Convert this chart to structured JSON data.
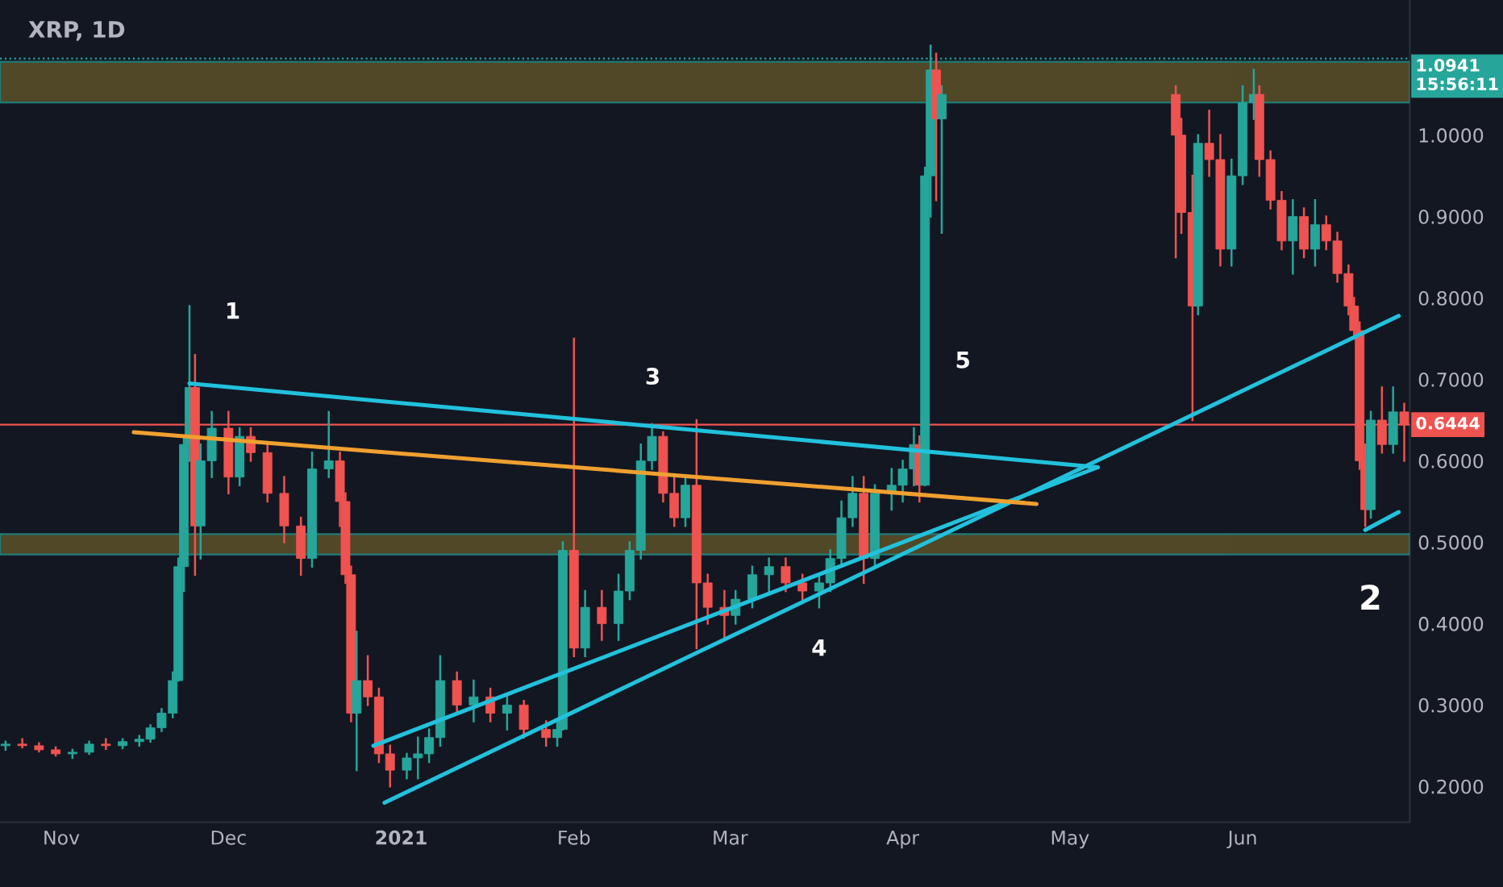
{
  "chart_data": {
    "type": "candlestick",
    "title": "XRP, 1D",
    "x": [
      "2020-10-22",
      "2020-10-25",
      "2020-10-28",
      "2020-10-31",
      "2020-11-03",
      "2020-11-06",
      "2020-11-09",
      "2020-11-12",
      "2020-11-15",
      "2020-11-17",
      "2020-11-19",
      "2020-11-21",
      "2020-11-22",
      "2020-11-23",
      "2020-11-24",
      "2020-11-25",
      "2020-11-26",
      "2020-11-28",
      "2020-12-01",
      "2020-12-03",
      "2020-12-05",
      "2020-12-08",
      "2020-12-11",
      "2020-12-14",
      "2020-12-16",
      "2020-12-19",
      "2020-12-21",
      "2020-12-22",
      "2020-12-23",
      "2020-12-24",
      "2020-12-26",
      "2020-12-28",
      "2020-12-30",
      "2021-01-02",
      "2021-01-04",
      "2021-01-06",
      "2021-01-08",
      "2021-01-11",
      "2021-01-14",
      "2021-01-17",
      "2021-01-20",
      "2021-01-23",
      "2021-01-27",
      "2021-01-29",
      "2021-01-30",
      "2021-02-01",
      "2021-02-03",
      "2021-02-06",
      "2021-02-09",
      "2021-02-11",
      "2021-02-13",
      "2021-02-15",
      "2021-02-17",
      "2021-02-19",
      "2021-02-21",
      "2021-02-23",
      "2021-02-25",
      "2021-02-28",
      "2021-03-02",
      "2021-03-05",
      "2021-03-08",
      "2021-03-11",
      "2021-03-14",
      "2021-03-17",
      "2021-03-19",
      "2021-03-21",
      "2021-03-23",
      "2021-03-25",
      "2021-03-27",
      "2021-03-30",
      "2021-04-01",
      "2021-04-03",
      "2021-04-04",
      "2021-04-05",
      "2021-04-06",
      "2021-04-07",
      "2021-04-08",
      "2021-05-20",
      "2021-05-21",
      "2021-05-23",
      "2021-05-24",
      "2021-05-26",
      "2021-05-28",
      "2021-05-30",
      "2021-06-01",
      "2021-06-03",
      "2021-06-04",
      "2021-06-06",
      "2021-06-08",
      "2021-06-10",
      "2021-06-12",
      "2021-06-14",
      "2021-06-16",
      "2021-06-18",
      "2021-06-20",
      "2021-06-21",
      "2021-06-22",
      "2021-06-23",
      "2021-06-24",
      "2021-06-26",
      "2021-06-28",
      "2021-06-30"
    ],
    "ohlc": [
      [
        0.25,
        0.255,
        0.245,
        0.252
      ],
      [
        0.252,
        0.258,
        0.248,
        0.25
      ],
      [
        0.25,
        0.253,
        0.243,
        0.245
      ],
      [
        0.245,
        0.248,
        0.238,
        0.24
      ],
      [
        0.24,
        0.245,
        0.235,
        0.242
      ],
      [
        0.242,
        0.255,
        0.24,
        0.252
      ],
      [
        0.252,
        0.258,
        0.246,
        0.25
      ],
      [
        0.25,
        0.258,
        0.247,
        0.255
      ],
      [
        0.255,
        0.262,
        0.25,
        0.258
      ],
      [
        0.258,
        0.275,
        0.255,
        0.272
      ],
      [
        0.272,
        0.295,
        0.268,
        0.29
      ],
      [
        0.29,
        0.34,
        0.285,
        0.33
      ],
      [
        0.33,
        0.48,
        0.33,
        0.47
      ],
      [
        0.47,
        0.63,
        0.44,
        0.62
      ],
      [
        0.62,
        0.79,
        0.6,
        0.69
      ],
      [
        0.69,
        0.73,
        0.46,
        0.52
      ],
      [
        0.52,
        0.62,
        0.48,
        0.6
      ],
      [
        0.6,
        0.66,
        0.58,
        0.64
      ],
      [
        0.64,
        0.66,
        0.56,
        0.58
      ],
      [
        0.58,
        0.64,
        0.57,
        0.63
      ],
      [
        0.63,
        0.64,
        0.6,
        0.61
      ],
      [
        0.61,
        0.62,
        0.55,
        0.56
      ],
      [
        0.56,
        0.58,
        0.5,
        0.52
      ],
      [
        0.52,
        0.53,
        0.46,
        0.48
      ],
      [
        0.48,
        0.61,
        0.47,
        0.59
      ],
      [
        0.59,
        0.66,
        0.58,
        0.6
      ],
      [
        0.6,
        0.61,
        0.52,
        0.55
      ],
      [
        0.55,
        0.56,
        0.45,
        0.46
      ],
      [
        0.46,
        0.47,
        0.28,
        0.29
      ],
      [
        0.29,
        0.39,
        0.22,
        0.33
      ],
      [
        0.33,
        0.36,
        0.3,
        0.31
      ],
      [
        0.31,
        0.32,
        0.23,
        0.24
      ],
      [
        0.24,
        0.25,
        0.2,
        0.22
      ],
      [
        0.22,
        0.24,
        0.21,
        0.235
      ],
      [
        0.235,
        0.26,
        0.21,
        0.24
      ],
      [
        0.24,
        0.27,
        0.23,
        0.26
      ],
      [
        0.26,
        0.36,
        0.25,
        0.33
      ],
      [
        0.33,
        0.34,
        0.29,
        0.3
      ],
      [
        0.3,
        0.33,
        0.28,
        0.31
      ],
      [
        0.31,
        0.32,
        0.28,
        0.29
      ],
      [
        0.29,
        0.31,
        0.27,
        0.3
      ],
      [
        0.3,
        0.305,
        0.26,
        0.27
      ],
      [
        0.27,
        0.28,
        0.25,
        0.26
      ],
      [
        0.26,
        0.28,
        0.25,
        0.27
      ],
      [
        0.27,
        0.5,
        0.27,
        0.49
      ],
      [
        0.49,
        0.75,
        0.36,
        0.37
      ],
      [
        0.37,
        0.44,
        0.36,
        0.42
      ],
      [
        0.42,
        0.44,
        0.38,
        0.4
      ],
      [
        0.4,
        0.46,
        0.38,
        0.44
      ],
      [
        0.44,
        0.5,
        0.43,
        0.49
      ],
      [
        0.49,
        0.62,
        0.48,
        0.6
      ],
      [
        0.6,
        0.645,
        0.59,
        0.63
      ],
      [
        0.63,
        0.635,
        0.55,
        0.56
      ],
      [
        0.56,
        0.58,
        0.52,
        0.53
      ],
      [
        0.53,
        0.58,
        0.52,
        0.57
      ],
      [
        0.57,
        0.65,
        0.37,
        0.45
      ],
      [
        0.45,
        0.46,
        0.4,
        0.42
      ],
      [
        0.42,
        0.44,
        0.38,
        0.41
      ],
      [
        0.41,
        0.44,
        0.4,
        0.43
      ],
      [
        0.43,
        0.47,
        0.42,
        0.46
      ],
      [
        0.46,
        0.48,
        0.44,
        0.47
      ],
      [
        0.47,
        0.48,
        0.44,
        0.45
      ],
      [
        0.45,
        0.46,
        0.43,
        0.44
      ],
      [
        0.44,
        0.46,
        0.42,
        0.45
      ],
      [
        0.45,
        0.49,
        0.44,
        0.48
      ],
      [
        0.48,
        0.55,
        0.47,
        0.53
      ],
      [
        0.53,
        0.58,
        0.52,
        0.56
      ],
      [
        0.56,
        0.58,
        0.45,
        0.48
      ],
      [
        0.48,
        0.57,
        0.47,
        0.56
      ],
      [
        0.56,
        0.59,
        0.54,
        0.57
      ],
      [
        0.57,
        0.6,
        0.55,
        0.59
      ],
      [
        0.59,
        0.64,
        0.57,
        0.62
      ],
      [
        0.62,
        0.63,
        0.55,
        0.57
      ],
      [
        0.57,
        0.96,
        0.57,
        0.95
      ],
      [
        0.95,
        1.11,
        0.9,
        1.08
      ],
      [
        1.08,
        1.1,
        0.92,
        1.02
      ],
      [
        1.02,
        1.06,
        0.88,
        1.05
      ],
      [
        1.05,
        1.06,
        0.85,
        1.0
      ],
      [
        1.0,
        1.02,
        0.88,
        0.905
      ],
      [
        0.905,
        0.95,
        0.65,
        0.79
      ],
      [
        0.79,
        1.0,
        0.78,
        0.99
      ],
      [
        0.99,
        1.03,
        0.95,
        0.97
      ],
      [
        0.97,
        1.0,
        0.84,
        0.86
      ],
      [
        0.86,
        0.97,
        0.84,
        0.95
      ],
      [
        0.95,
        1.06,
        0.94,
        1.04
      ],
      [
        1.04,
        1.08,
        1.02,
        1.05
      ],
      [
        1.05,
        1.06,
        0.95,
        0.97
      ],
      [
        0.97,
        0.98,
        0.91,
        0.92
      ],
      [
        0.92,
        0.93,
        0.86,
        0.87
      ],
      [
        0.87,
        0.92,
        0.83,
        0.9
      ],
      [
        0.9,
        0.91,
        0.85,
        0.86
      ],
      [
        0.86,
        0.92,
        0.84,
        0.89
      ],
      [
        0.89,
        0.9,
        0.86,
        0.87
      ],
      [
        0.87,
        0.88,
        0.82,
        0.83
      ],
      [
        0.83,
        0.84,
        0.78,
        0.79
      ],
      [
        0.79,
        0.8,
        0.75,
        0.76
      ],
      [
        0.76,
        0.77,
        0.59,
        0.6
      ],
      [
        0.6,
        0.62,
        0.52,
        0.54
      ],
      [
        0.54,
        0.66,
        0.53,
        0.65
      ],
      [
        0.65,
        0.69,
        0.61,
        0.62
      ],
      [
        0.62,
        0.69,
        0.61,
        0.66
      ],
      [
        0.66,
        0.67,
        0.6,
        0.6444
      ]
    ],
    "series": [
      {
        "type": "line",
        "color": "#22c1dc",
        "x": [
          "2020-11-24",
          "2021-05-06"
        ],
        "values": [
          0.695,
          0.592
        ]
      },
      {
        "type": "line",
        "color": "#22c1dc",
        "x": [
          "2020-12-29",
          "2021-06-29"
        ],
        "values": [
          0.18,
          0.778
        ]
      },
      {
        "type": "line",
        "color": "#22c1dc",
        "x": [
          "2020-12-27",
          "2021-05-06"
        ],
        "values": [
          0.25,
          0.592
        ]
      },
      {
        "type": "line",
        "color": "#22c1dc",
        "x": [
          "2021-06-23",
          "2021-06-29"
        ],
        "values": [
          0.515,
          0.537
        ]
      },
      {
        "type": "line",
        "color": "#f0a030",
        "x": [
          "2020-11-14",
          "2021-04-25"
        ],
        "values": [
          0.635,
          0.547
        ]
      }
    ],
    "bands": [
      {
        "axis": "y",
        "from": 1.04,
        "to": 1.09,
        "color": "#6b5d2a"
      },
      {
        "axis": "y",
        "from": 0.485,
        "to": 0.51,
        "color": "#6b5d2a"
      }
    ],
    "ref_lines": [
      {
        "axis": "y",
        "value": 1.0941,
        "label": "1.0941",
        "color": "#26a69a",
        "line_style": "dotted"
      },
      {
        "axis": "y",
        "value": 0.6444,
        "label": "0.6444",
        "color": "#ef5350"
      }
    ],
    "annotations": [
      "1",
      "3",
      "4",
      "5",
      "2",
      "15:56:11"
    ],
    "xlim": [
      "2020-10-21",
      "2021-07-01"
    ],
    "xticks": [
      {
        "value": "2020-11-01",
        "label": "Nov"
      },
      {
        "value": "2020-12-01",
        "label": "Dec"
      },
      {
        "value": "2021-01-01",
        "label": "2021"
      },
      {
        "value": "2021-02-01",
        "label": "Feb"
      },
      {
        "value": "2021-03-01",
        "label": "Mar"
      },
      {
        "value": "2021-04-01",
        "label": "Apr"
      },
      {
        "value": "2021-05-01",
        "label": "May"
      },
      {
        "value": "2021-06-01",
        "label": "Jun"
      }
    ],
    "ylim": [
      0.156,
      1.166
    ],
    "yticks": [
      {
        "value": 0.2,
        "label": "0.2000"
      },
      {
        "value": 0.3,
        "label": "0.3000"
      },
      {
        "value": 0.4,
        "label": "0.4000"
      },
      {
        "value": 0.5,
        "label": "0.5000"
      },
      {
        "value": 0.6,
        "label": "0.6000"
      },
      {
        "value": 0.7,
        "label": "0.7000"
      },
      {
        "value": 0.8,
        "label": "0.8000"
      },
      {
        "value": 0.9,
        "label": "0.9000"
      },
      {
        "value": 1.0,
        "label": "1.0000"
      }
    ],
    "grid": false
  }
}
